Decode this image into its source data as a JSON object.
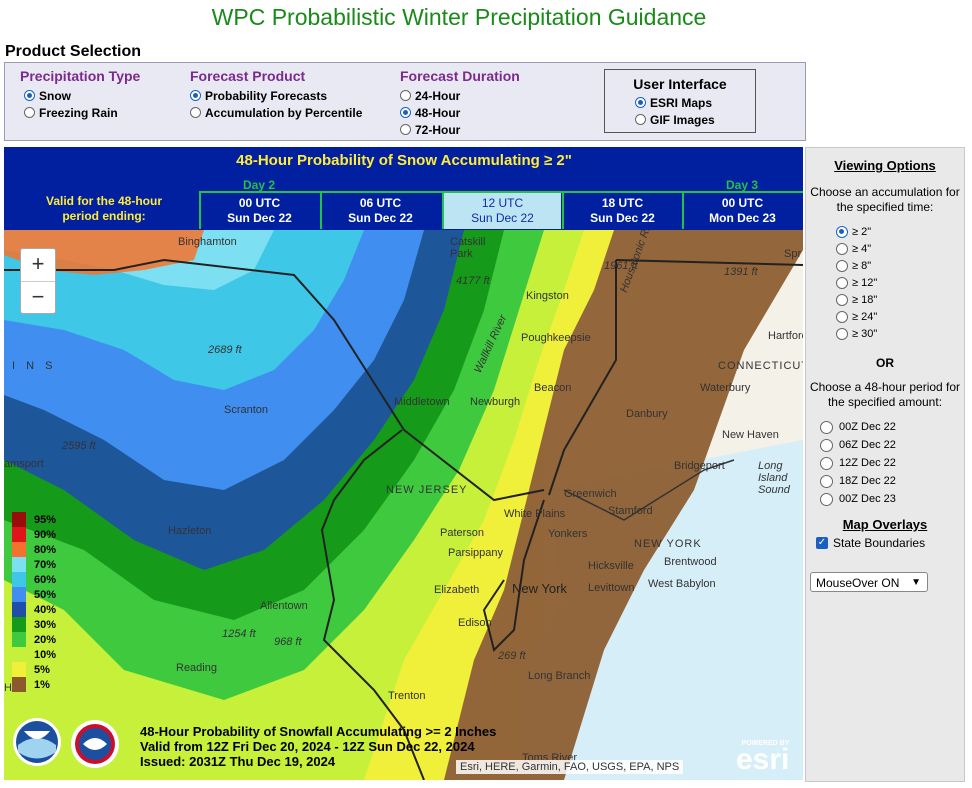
{
  "page_title": "WPC Probabilistic Winter Precipitation Guidance",
  "product_selection": {
    "title": "Product Selection",
    "precip_type": {
      "title": "Precipitation Type",
      "options": [
        {
          "label": "Snow",
          "checked": true
        },
        {
          "label": "Freezing Rain",
          "checked": false
        }
      ]
    },
    "forecast_product": {
      "title": "Forecast Product",
      "options": [
        {
          "label": "Probability Forecasts",
          "checked": true
        },
        {
          "label": "Accumulation by Percentile",
          "checked": false
        }
      ]
    },
    "forecast_duration": {
      "title": "Forecast Duration",
      "options": [
        {
          "label": "24-Hour",
          "checked": false
        },
        {
          "label": "48-Hour",
          "checked": true
        },
        {
          "label": "72-Hour",
          "checked": false
        }
      ]
    },
    "user_interface": {
      "title": "User Interface",
      "options": [
        {
          "label": "ESRI Maps",
          "checked": true
        },
        {
          "label": "GIF Images",
          "checked": false
        }
      ]
    }
  },
  "map_header": {
    "title": "48-Hour Probability of Snow Accumulating ≥ 2\"",
    "valid_label": "Valid for the 48-hour period ending:",
    "day2": "Day 2",
    "day3": "Day 3",
    "tabs": [
      {
        "time": "00 UTC",
        "date": "Sun Dec 22",
        "active": false
      },
      {
        "time": "06 UTC",
        "date": "Sun Dec 22",
        "active": false
      },
      {
        "time": "12 UTC",
        "date": "Sun Dec 22",
        "active": true
      },
      {
        "time": "18 UTC",
        "date": "Sun Dec 22",
        "active": false
      },
      {
        "time": "00 UTC",
        "date": "Mon Dec 23",
        "active": false
      }
    ]
  },
  "map": {
    "zoom_in": "+",
    "zoom_out": "−",
    "labels": {
      "binghamton": "Binghamton",
      "catskill": "Catskill Park",
      "kingston": "Kingston",
      "poughkeepsie": "Poughkeepsie",
      "scranton": "Scranton",
      "middletown": "Middletown",
      "newburgh": "Newburgh",
      "beacon": "Beacon",
      "danbury": "Danbury",
      "waterbury": "Waterbury",
      "new_haven": "New Haven",
      "bridgeport": "Bridgeport",
      "hartford": "Hartford",
      "connecticut": "CONNECTICUT",
      "long_island_sound": "Long Island Sound",
      "new_jersey": "NEW JERSEY",
      "new_york_state": "NEW YORK",
      "hazleton": "Hazleton",
      "allentown": "Allentown",
      "reading": "Reading",
      "trenton": "Trenton",
      "paterson": "Paterson",
      "parsippany": "Parsippany",
      "elizabeth": "Elizabeth",
      "edison": "Edison",
      "white_plains": "White Plains",
      "greenwich": "Greenwich",
      "stamford": "Stamford",
      "yonkers": "Yonkers",
      "new_york": "New York",
      "levittown": "Levittown",
      "hicksville": "Hicksville",
      "brentwood": "Brentwood",
      "west_babylon": "West Babylon",
      "long_branch": "Long Branch",
      "toms_river": "Toms River",
      "pottsville": "amsport",
      "elev_2689": "2689 ft",
      "elev_4177": "4177 ft",
      "elev_1961": "1961 ft",
      "elev_1391": "1391 ft",
      "elev_2595": "2595 ft",
      "elev_1254": "1254 ft",
      "elev_968": "968 ft",
      "elev_269": "269 ft",
      "housatonic": "Housatonic River",
      "wallkill": "Wallkill River",
      "springfield": "Spr",
      "partial_ins": "I N S",
      "partial_ha": "Ha"
    },
    "legend": [
      {
        "value": "95%",
        "color": "#9a0d0d"
      },
      {
        "value": "90%",
        "color": "#e0141b"
      },
      {
        "value": "80%",
        "color": "#f4722b"
      },
      {
        "value": "70%",
        "color": "#7de0f2"
      },
      {
        "value": "60%",
        "color": "#3fc7e8"
      },
      {
        "value": "50%",
        "color": "#3f8ef0"
      },
      {
        "value": "40%",
        "color": "#1f4fa8"
      },
      {
        "value": "30%",
        "color": "#159a1a"
      },
      {
        "value": "20%",
        "color": "#3fc93f"
      },
      {
        "value": "10%",
        "color": "#c7f03a"
      },
      {
        "value": "5%",
        "color": "#f0f03a"
      },
      {
        "value": "1%",
        "color": "#8b5a2b"
      }
    ],
    "caption": {
      "line1": "48-Hour Probability of Snowfall Accumulating >= 2 Inches",
      "line2": "Valid from 12Z Fri Dec 20, 2024 - 12Z Sun Dec 22, 2024",
      "line3": "Issued: 2031Z Thu Dec 19, 2024"
    },
    "attribution": "Esri, HERE, Garmin, FAO, USGS, EPA, NPS",
    "esri_powered": "POWERED BY",
    "esri_logo": "esri"
  },
  "viewing_options": {
    "title": "Viewing Options",
    "accum_prompt": "Choose an accumulation for the specified time:",
    "accum_options": [
      {
        "label": "≥ 2\"",
        "checked": true
      },
      {
        "label": "≥ 4\"",
        "checked": false
      },
      {
        "label": "≥ 8\"",
        "checked": false
      },
      {
        "label": "≥ 12\"",
        "checked": false
      },
      {
        "label": "≥ 18\"",
        "checked": false
      },
      {
        "label": "≥ 24\"",
        "checked": false
      },
      {
        "label": "≥ 30\"",
        "checked": false
      }
    ],
    "or": "OR",
    "period_prompt": "Choose a 48-hour period for the specified amount:",
    "period_options": [
      {
        "label": "00Z Dec 22",
        "checked": false
      },
      {
        "label": "06Z Dec 22",
        "checked": false
      },
      {
        "label": "12Z Dec 22",
        "checked": false
      },
      {
        "label": "18Z Dec 22",
        "checked": false
      },
      {
        "label": "00Z Dec 23",
        "checked": false
      }
    ],
    "overlays_title": "Map Overlays",
    "overlay_state": {
      "label": "State Boundaries",
      "checked": true
    },
    "mouseover_select": "MouseOver ON"
  }
}
